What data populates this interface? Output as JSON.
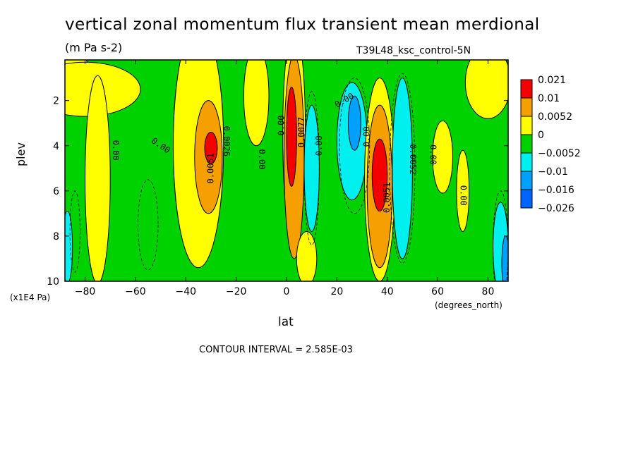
{
  "chart_data": {
    "type": "heatmap",
    "title": "vertical zonal momentum flux transient mean merdional",
    "subtitle": "(m Pa s-2)",
    "dataset_label": "T39L48_ksc_control-5N",
    "xlabel": "lat",
    "x_units": "(degrees_north)",
    "ylabel": "plev",
    "y_units": "(x1E4 Pa)",
    "xlim": [
      -88,
      88
    ],
    "ylim": [
      10,
      0.2
    ],
    "x_ticks": [
      -80,
      -60,
      -40,
      -20,
      0,
      20,
      40,
      60,
      80
    ],
    "x_tick_labels": [
      "−80",
      "−60",
      "−40",
      "−20",
      "0",
      "20",
      "40",
      "60",
      "80"
    ],
    "y_ticks": [
      2,
      4,
      6,
      8,
      10
    ],
    "y_tick_labels": [
      "2",
      "4",
      "6",
      "8",
      "10"
    ],
    "contour_interval_label": "CONTOUR INTERVAL = 2.585E-03",
    "legend": {
      "placement": "right",
      "labels": [
        "0.021",
        "0.01",
        "0.0052",
        "0",
        "−0.0052",
        "−0.01",
        "−0.016",
        "−0.026"
      ],
      "colors": [
        "#f50000",
        "#f5a000",
        "#ffff00",
        "#00d200",
        "#00f0f0",
        "#00a0ff",
        "#0064ff"
      ]
    },
    "background_level": "#00d200",
    "regions": [
      {
        "level": "#ffff00",
        "lat": -88,
        "plev": 0.9
      },
      {
        "level": "#ffff00",
        "lat": -80,
        "plev": 1.5
      },
      {
        "level": "#ffff00",
        "lat": -75,
        "plev": 5.5
      },
      {
        "level": "#ffff00",
        "lat": -35,
        "plev": 4.0
      },
      {
        "level": "#f5a000",
        "lat": -31,
        "plev": 4.5
      },
      {
        "level": "#f50000",
        "lat": -30,
        "plev": 4.1
      },
      {
        "level": "#ffff00",
        "lat": -12,
        "plev": 1.8
      },
      {
        "level": "#ffff00",
        "lat": 3,
        "plev": 3.5
      },
      {
        "level": "#f5a000",
        "lat": 3,
        "plev": 4.5
      },
      {
        "level": "#f50000",
        "lat": 2,
        "plev": 3.6
      },
      {
        "level": "#ffff00",
        "lat": 8,
        "plev": 9.0
      },
      {
        "level": "#00f0f0",
        "lat": 10,
        "plev": 5.0
      },
      {
        "level": "#00f0f0",
        "lat": 26,
        "plev": 3.8
      },
      {
        "level": "#00a0ff",
        "lat": 27,
        "plev": 3.0
      },
      {
        "level": "#ffff00",
        "lat": 37,
        "plev": 5.5
      },
      {
        "level": "#f5a000",
        "lat": 37,
        "plev": 5.8
      },
      {
        "level": "#f50000",
        "lat": 37,
        "plev": 5.3
      },
      {
        "level": "#00f0f0",
        "lat": 46,
        "plev": 5.0
      },
      {
        "level": "#ffff00",
        "lat": 62,
        "plev": 4.5
      },
      {
        "level": "#ffff00",
        "lat": 70,
        "plev": 6.0
      },
      {
        "level": "#ffff00",
        "lat": 80,
        "plev": 1.2
      },
      {
        "level": "#00f0f0",
        "lat": 85,
        "plev": 8.5
      },
      {
        "level": "#00a0ff",
        "lat": 87,
        "plev": 9.2
      },
      {
        "level": "#00f0f0",
        "lat": -87,
        "plev": 8.5
      }
    ],
    "contour_labels": [
      {
        "text": "0.00",
        "lat": -68,
        "plev": 4.2,
        "angle": 90
      },
      {
        "text": "0.00",
        "lat": -50,
        "plev": 4.0,
        "angle": 35
      },
      {
        "text": "0.0051",
        "lat": -30,
        "plev": 5.0,
        "angle": -90
      },
      {
        "text": "0.0026",
        "lat": -24,
        "plev": 3.8,
        "angle": 90
      },
      {
        "text": "0.00",
        "lat": -10,
        "plev": 4.6,
        "angle": 90
      },
      {
        "text": "0.00",
        "lat": -2,
        "plev": 3.1,
        "angle": -90
      },
      {
        "text": "0.0077",
        "lat": 6,
        "plev": 3.4,
        "angle": -90
      },
      {
        "text": "0.00",
        "lat": 13,
        "plev": 4.0,
        "angle": -90
      },
      {
        "text": "0.00",
        "lat": 23,
        "plev": 2.0,
        "angle": -30
      },
      {
        "text": "0.00",
        "lat": 32,
        "plev": 3.6,
        "angle": -90
      },
      {
        "text": "0.0051",
        "lat": 40,
        "plev": 6.3,
        "angle": -90
      },
      {
        "text": "0.0052",
        "lat": 50,
        "plev": 4.6,
        "angle": 90
      },
      {
        "text": "0.00",
        "lat": 58,
        "plev": 4.4,
        "angle": 90
      },
      {
        "text": "0.00",
        "lat": 70,
        "plev": 6.2,
        "angle": 90
      }
    ]
  }
}
